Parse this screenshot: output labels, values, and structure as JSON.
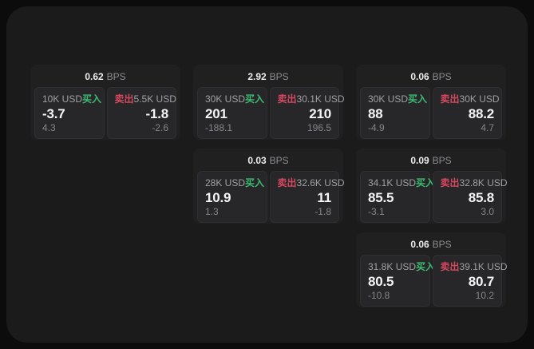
{
  "labels": {
    "bps_unit": "BPS",
    "buy": "买入",
    "sell": "卖出"
  },
  "colors": {
    "buy": "#3cbb71",
    "sell": "#d6485f",
    "panel": "#1b1b1c",
    "card": "#202021",
    "cell": "#272729"
  },
  "cards": [
    {
      "bps": "0.62",
      "buy": {
        "amount": "10K USD",
        "price": "-3.7",
        "delta": "4.3"
      },
      "sell": {
        "amount": "5.5K USD",
        "price": "-1.8",
        "delta": "-2.6"
      }
    },
    {
      "bps": "2.92",
      "buy": {
        "amount": "30K USD",
        "price": "201",
        "delta": "-188.1"
      },
      "sell": {
        "amount": "30.1K USD",
        "price": "210",
        "delta": "196.5"
      }
    },
    {
      "bps": "0.06",
      "buy": {
        "amount": "30K USD",
        "price": "88",
        "delta": "-4.9"
      },
      "sell": {
        "amount": "30K USD",
        "price": "88.2",
        "delta": "4.7"
      }
    },
    {
      "bps": "0.03",
      "buy": {
        "amount": "28K USD",
        "price": "10.9",
        "delta": "1.3"
      },
      "sell": {
        "amount": "32.6K USD",
        "price": "11",
        "delta": "-1.8"
      }
    },
    {
      "bps": "0.09",
      "buy": {
        "amount": "34.1K USD",
        "price": "85.5",
        "delta": "-3.1"
      },
      "sell": {
        "amount": "32.8K USD",
        "price": "85.8",
        "delta": "3.0"
      }
    },
    {
      "bps": "0.06",
      "buy": {
        "amount": "31.8K USD",
        "price": "80.5",
        "delta": "-10.8"
      },
      "sell": {
        "amount": "39.1K USD",
        "price": "80.7",
        "delta": "10.2"
      }
    }
  ]
}
